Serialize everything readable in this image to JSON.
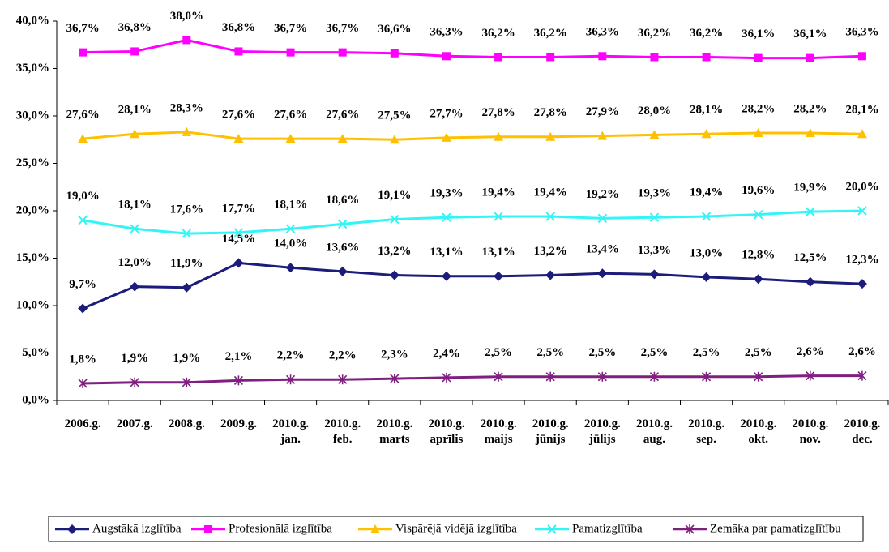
{
  "chart_data": {
    "type": "line",
    "categories": [
      "2006.g.",
      "2007.g.",
      "2008.g.",
      "2009.g.",
      "2010.g. jan.",
      "2010.g. feb.",
      "2010.g. marts",
      "2010.g. aprīlis",
      "2010.g. maijs",
      "2010.g. jūnijs",
      "2010.g. jūlijs",
      "2010.g. aug.",
      "2010.g. sep.",
      "2010.g. okt.",
      "2010.g. nov.",
      "2010.g. dec."
    ],
    "series": [
      {
        "name": "Augstākā izglītība",
        "color": "#1c1c7a",
        "marker": "diamond",
        "values": [
          9.7,
          12.0,
          11.9,
          14.5,
          14.0,
          13.6,
          13.2,
          13.1,
          13.1,
          13.2,
          13.4,
          13.3,
          13.0,
          12.8,
          12.5,
          12.3
        ],
        "value_labels": [
          "9,7%",
          "12,0%",
          "11,9%",
          "14,5%",
          "14,0%",
          "13,6%",
          "13,2%",
          "13,1%",
          "13,1%",
          "13,2%",
          "13,4%",
          "13,3%",
          "13,0%",
          "12,8%",
          "12,5%",
          "12,3%"
        ]
      },
      {
        "name": "Profesionālā izglītība",
        "color": "#ff00ff",
        "marker": "square",
        "values": [
          36.7,
          36.8,
          38.0,
          36.8,
          36.7,
          36.7,
          36.6,
          36.3,
          36.2,
          36.2,
          36.3,
          36.2,
          36.2,
          36.1,
          36.1,
          36.3
        ],
        "value_labels": [
          "36,7%",
          "36,8%",
          "38,0%",
          "36,8%",
          "36,7%",
          "36,7%",
          "36,6%",
          "36,3%",
          "36,2%",
          "36,2%",
          "36,3%",
          "36,2%",
          "36,2%",
          "36,1%",
          "36,1%",
          "36,3%"
        ]
      },
      {
        "name": "Vispārējā vidējā izglītība",
        "color": "#ffc000",
        "marker": "triangle",
        "values": [
          27.6,
          28.1,
          28.3,
          27.6,
          27.6,
          27.6,
          27.5,
          27.7,
          27.8,
          27.8,
          27.9,
          28.0,
          28.1,
          28.2,
          28.2,
          28.1
        ],
        "value_labels": [
          "27,6%",
          "28,1%",
          "28,3%",
          "27,6%",
          "27,6%",
          "27,6%",
          "27,5%",
          "27,7%",
          "27,8%",
          "27,8%",
          "27,9%",
          "28,0%",
          "28,1%",
          "28,2%",
          "28,2%",
          "28,1%"
        ]
      },
      {
        "name": "Pamatizglītība",
        "color": "#33f5f5",
        "marker": "cross",
        "values": [
          19.0,
          18.1,
          17.6,
          17.7,
          18.1,
          18.6,
          19.1,
          19.3,
          19.4,
          19.4,
          19.2,
          19.3,
          19.4,
          19.6,
          19.9,
          20.0
        ],
        "value_labels": [
          "19,0%",
          "18,1%",
          "17,6%",
          "17,7%",
          "18,1%",
          "18,6%",
          "19,1%",
          "19,3%",
          "19,4%",
          "19,4%",
          "19,2%",
          "19,3%",
          "19,4%",
          "19,6%",
          "19,9%",
          "20,0%"
        ]
      },
      {
        "name": "Zemāka par pamatizglītību",
        "color": "#7f1f7f",
        "marker": "star",
        "values": [
          1.8,
          1.9,
          1.9,
          2.1,
          2.2,
          2.2,
          2.3,
          2.4,
          2.5,
          2.5,
          2.5,
          2.5,
          2.5,
          2.5,
          2.6,
          2.6
        ],
        "value_labels": [
          "1,8%",
          "1,9%",
          "1,9%",
          "2,1%",
          "2,2%",
          "2,2%",
          "2,3%",
          "2,4%",
          "2,5%",
          "2,5%",
          "2,5%",
          "2,5%",
          "2,5%",
          "2,5%",
          "2,6%",
          "2,6%"
        ]
      }
    ],
    "ylim": [
      0,
      40
    ],
    "yticks": [
      {
        "value": 0,
        "label": "0,0%"
      },
      {
        "value": 5,
        "label": "5,0%"
      },
      {
        "value": 10,
        "label": "10,0%"
      },
      {
        "value": 15,
        "label": "15,0%"
      },
      {
        "value": 20,
        "label": "20,0%"
      },
      {
        "value": 25,
        "label": "25,0%"
      },
      {
        "value": 30,
        "label": "30,0%"
      },
      {
        "value": 35,
        "label": "35,0%"
      },
      {
        "value": 40,
        "label": "40,0%"
      }
    ],
    "legend": "bottom"
  }
}
